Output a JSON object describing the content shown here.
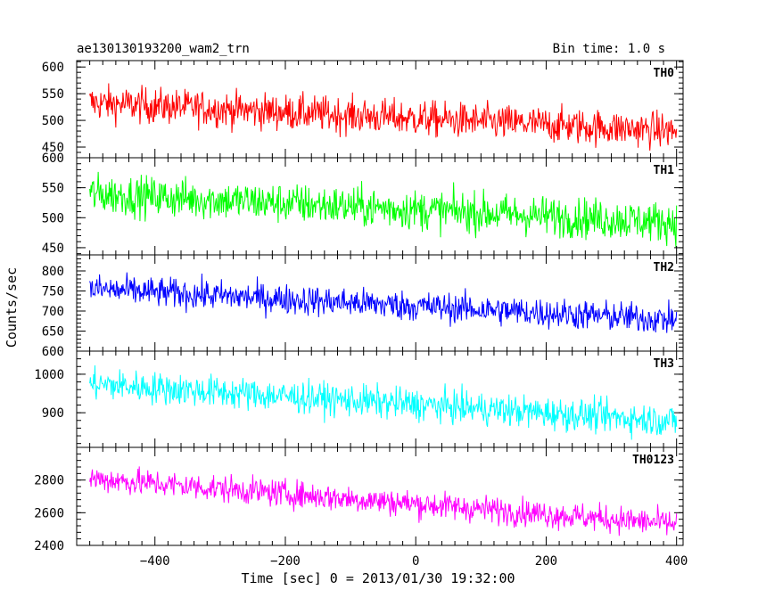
{
  "header": {
    "left_title": "ae130130193200_wam2_trn",
    "right_title": "Bin time: 1.0 s"
  },
  "chart_data": {
    "type": "line",
    "xlabel": "Time [sec] 0 = 2013/01/30 19:32:00",
    "ylabel": "Counts/sec",
    "xlim": [
      -520,
      410
    ],
    "x_range": [
      -500,
      400
    ],
    "bin_time": 1.0,
    "x_ticks": [
      -400,
      -200,
      0,
      200,
      400
    ],
    "x_tick_labels": [
      "−400",
      "−200",
      "0",
      "200",
      "400"
    ],
    "grid": false,
    "panels": [
      {
        "name": "TH0",
        "color": "#ff0000",
        "ylim": [
          430,
          612
        ],
        "yticks": [
          450,
          500,
          550,
          600
        ],
        "trend_start": 533,
        "trend_end": 480,
        "noise": 24
      },
      {
        "name": "TH1",
        "color": "#00ff00",
        "ylim": [
          438,
          600
        ],
        "yticks": [
          450,
          500,
          550,
          600
        ],
        "trend_start": 540,
        "trend_end": 492,
        "noise": 24
      },
      {
        "name": "TH2",
        "color": "#0000ff",
        "ylim": [
          600,
          840
        ],
        "yticks": [
          600,
          650,
          700,
          750,
          800
        ],
        "trend_start": 755,
        "trend_end": 678,
        "noise": 27
      },
      {
        "name": "TH3",
        "color": "#00ffff",
        "ylim": [
          810,
          1060
        ],
        "yticks": [
          900,
          1000
        ],
        "trend_start": 975,
        "trend_end": 878,
        "noise": 30
      },
      {
        "name": "TH0123",
        "color": "#ff00ff",
        "ylim": [
          2400,
          3000
        ],
        "yticks": [
          2400,
          2600,
          2800
        ],
        "trend_start": 2810,
        "trend_end": 2530,
        "noise": 60
      }
    ]
  }
}
